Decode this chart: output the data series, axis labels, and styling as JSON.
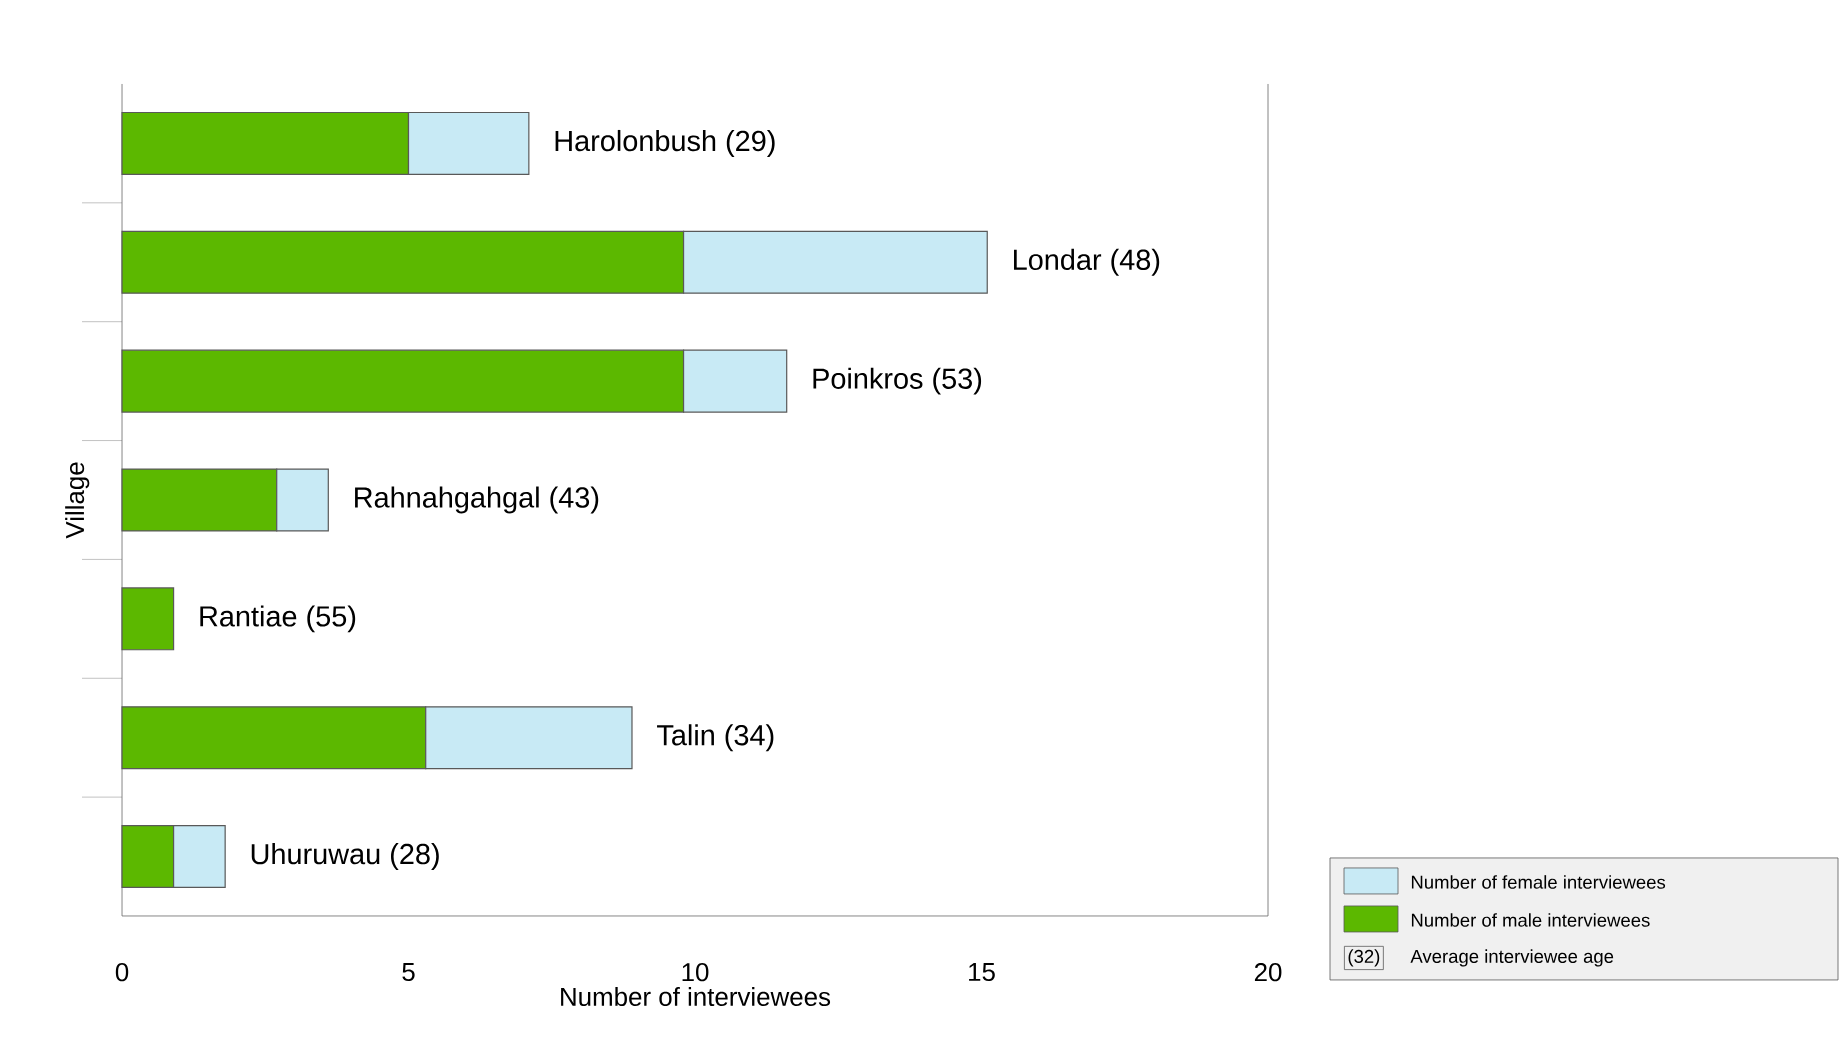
{
  "chart_data": {
    "type": "bar",
    "orientation": "horizontal",
    "stacked": true,
    "xlabel": "Number of interviewees",
    "ylabel": "Village",
    "categories": [
      "Harolonbush (29)",
      "Londar (48)",
      "Poinkros (53)",
      "Rahnahgahgal (43)",
      "Rantiae (55)",
      "Talin (34)",
      "Uhuruwau (28)"
    ],
    "series": [
      {
        "name": "Number of male interviewees",
        "color": "#5cb800",
        "values": [
          5.0,
          9.8,
          9.8,
          2.7,
          0.9,
          5.3,
          0.9
        ]
      },
      {
        "name": "Number of female interviewees",
        "color": "#c8eaf5",
        "values": [
          2.1,
          5.3,
          1.8,
          0.9,
          null,
          3.6,
          0.9
        ]
      }
    ],
    "xlim": [
      0,
      20
    ],
    "xticks": [
      0,
      5,
      10,
      15,
      20
    ],
    "legend": "right",
    "annotations": [
      "(32)",
      "Average interviewee age"
    ]
  }
}
